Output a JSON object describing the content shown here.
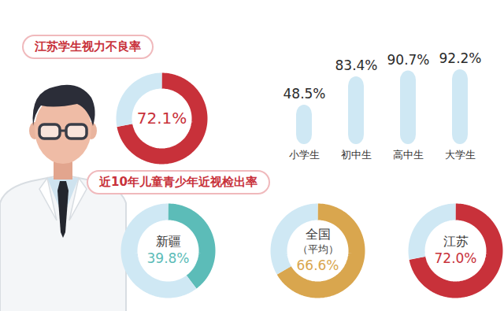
{
  "chart_data": [
    {
      "title": "江苏学生视力不良率",
      "charts": [
        {
          "type": "pie",
          "values": [
            72.1,
            27.9
          ],
          "value_labels": [
            "72.1%",
            null
          ],
          "colors": [
            "#c8313a",
            "#cfe8f4"
          ],
          "data_labels": true
        },
        {
          "type": "bar",
          "categories": [
            "小学生",
            "初中生",
            "高中生",
            "大学生"
          ],
          "values": [
            48.5,
            83.4,
            90.7,
            92.2
          ],
          "value_labels": [
            "48.5%",
            "83.4%",
            "90.7%",
            "92.2%"
          ],
          "color": "#cfe8f4",
          "ylim": [
            0,
            100
          ],
          "data_labels": true,
          "tick_labels": "x"
        }
      ]
    },
    {
      "title": "近10年儿童青少年近视检出率",
      "charts": [
        {
          "type": "pie",
          "title": "新疆",
          "values": [
            39.8,
            60.2
          ],
          "value_labels": [
            "39.8%",
            null
          ],
          "colors": [
            "#5cbcb8",
            "#cfe8f4"
          ],
          "data_labels": true
        },
        {
          "type": "pie",
          "title": "全国",
          "subtitle": "（平均）",
          "values": [
            66.6,
            33.4
          ],
          "value_labels": [
            "66.6%",
            null
          ],
          "colors": [
            "#d9a64e",
            "#cfe8f4"
          ],
          "data_labels": true
        },
        {
          "type": "pie",
          "title": "江苏",
          "values": [
            72.0,
            28.0
          ],
          "value_labels": [
            "72.0%",
            null
          ],
          "colors": [
            "#c8313a",
            "#cfe8f4"
          ],
          "data_labels": true
        }
      ]
    }
  ]
}
